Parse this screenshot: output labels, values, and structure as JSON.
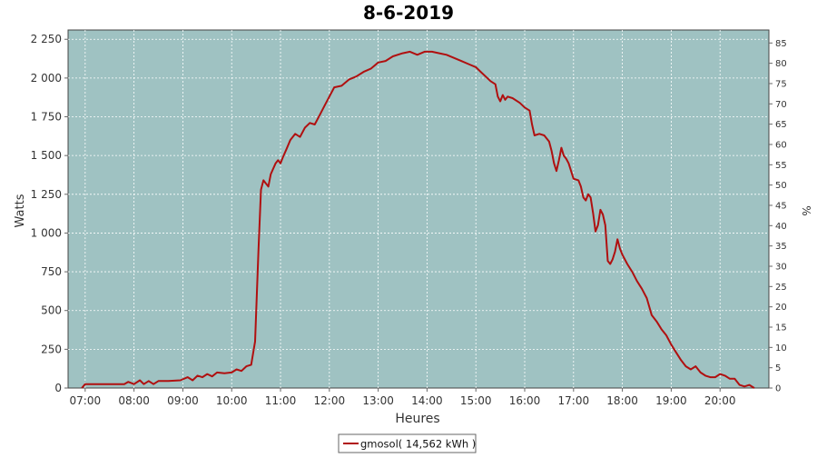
{
  "chart_data": {
    "type": "line",
    "title": "8-6-2019",
    "xlabel": "Heures",
    "ylabel_left": "Watts",
    "ylabel_right": "%",
    "x_ticks": [
      "07:00",
      "08:00",
      "09:00",
      "10:00",
      "11:00",
      "12:00",
      "13:00",
      "14:00",
      "15:00",
      "16:00",
      "17:00",
      "18:00",
      "19:00",
      "20:00"
    ],
    "x_range_hours": [
      6.65,
      21.0
    ],
    "y_ticks_left": [
      "0",
      "250",
      "500",
      "750",
      "1 000",
      "1 250",
      "1 500",
      "1 750",
      "2 000",
      "2 250"
    ],
    "y_ticks_right": [
      "0",
      "5",
      "10",
      "15",
      "20",
      "25",
      "30",
      "35",
      "40",
      "45",
      "50",
      "55",
      "60",
      "65",
      "70",
      "75",
      "80",
      "85"
    ],
    "ylim_left": [
      0,
      2310
    ],
    "ylim_right": [
      0,
      88.2
    ],
    "grid": true,
    "colors": {
      "plot_bg": "#9fc2c2",
      "line": "#b01010",
      "grid": "#ffffff"
    },
    "legend": {
      "placement": "bottom-center",
      "label": "gmosol( 14,562 kWh )"
    },
    "series": [
      {
        "name": "gmosol( 14,562 kWh )",
        "points": [
          [
            6.93,
            0
          ],
          [
            7.0,
            25
          ],
          [
            7.2,
            25
          ],
          [
            7.5,
            25
          ],
          [
            7.8,
            25
          ],
          [
            7.88,
            40
          ],
          [
            8.0,
            25
          ],
          [
            8.12,
            50
          ],
          [
            8.2,
            25
          ],
          [
            8.3,
            45
          ],
          [
            8.4,
            25
          ],
          [
            8.5,
            45
          ],
          [
            8.7,
            45
          ],
          [
            8.95,
            50
          ],
          [
            9.1,
            70
          ],
          [
            9.2,
            50
          ],
          [
            9.3,
            80
          ],
          [
            9.4,
            70
          ],
          [
            9.5,
            90
          ],
          [
            9.6,
            75
          ],
          [
            9.7,
            100
          ],
          [
            9.85,
            95
          ],
          [
            10.0,
            100
          ],
          [
            10.1,
            120
          ],
          [
            10.2,
            110
          ],
          [
            10.3,
            140
          ],
          [
            10.4,
            150
          ],
          [
            10.48,
            300
          ],
          [
            10.55,
            900
          ],
          [
            10.6,
            1280
          ],
          [
            10.65,
            1340
          ],
          [
            10.7,
            1320
          ],
          [
            10.75,
            1300
          ],
          [
            10.8,
            1380
          ],
          [
            10.9,
            1450
          ],
          [
            10.95,
            1470
          ],
          [
            11.0,
            1450
          ],
          [
            11.05,
            1490
          ],
          [
            11.12,
            1540
          ],
          [
            11.2,
            1600
          ],
          [
            11.3,
            1640
          ],
          [
            11.4,
            1620
          ],
          [
            11.5,
            1680
          ],
          [
            11.6,
            1710
          ],
          [
            11.7,
            1700
          ],
          [
            11.8,
            1760
          ],
          [
            11.9,
            1820
          ],
          [
            12.0,
            1880
          ],
          [
            12.1,
            1940
          ],
          [
            12.25,
            1950
          ],
          [
            12.4,
            1990
          ],
          [
            12.55,
            2010
          ],
          [
            12.7,
            2040
          ],
          [
            12.85,
            2060
          ],
          [
            13.0,
            2100
          ],
          [
            13.15,
            2110
          ],
          [
            13.3,
            2140
          ],
          [
            13.5,
            2160
          ],
          [
            13.65,
            2170
          ],
          [
            13.8,
            2150
          ],
          [
            13.95,
            2170
          ],
          [
            14.1,
            2170
          ],
          [
            14.25,
            2160
          ],
          [
            14.4,
            2150
          ],
          [
            14.55,
            2130
          ],
          [
            14.7,
            2110
          ],
          [
            14.85,
            2090
          ],
          [
            15.0,
            2070
          ],
          [
            15.1,
            2040
          ],
          [
            15.2,
            2010
          ],
          [
            15.3,
            1980
          ],
          [
            15.4,
            1960
          ],
          [
            15.45,
            1880
          ],
          [
            15.5,
            1850
          ],
          [
            15.55,
            1890
          ],
          [
            15.6,
            1860
          ],
          [
            15.65,
            1880
          ],
          [
            15.75,
            1870
          ],
          [
            15.9,
            1840
          ],
          [
            16.0,
            1810
          ],
          [
            16.1,
            1790
          ],
          [
            16.15,
            1700
          ],
          [
            16.2,
            1630
          ],
          [
            16.3,
            1640
          ],
          [
            16.4,
            1630
          ],
          [
            16.5,
            1590
          ],
          [
            16.55,
            1530
          ],
          [
            16.6,
            1450
          ],
          [
            16.65,
            1400
          ],
          [
            16.7,
            1470
          ],
          [
            16.75,
            1550
          ],
          [
            16.8,
            1500
          ],
          [
            16.85,
            1480
          ],
          [
            16.9,
            1450
          ],
          [
            17.0,
            1350
          ],
          [
            17.1,
            1340
          ],
          [
            17.15,
            1300
          ],
          [
            17.2,
            1230
          ],
          [
            17.25,
            1210
          ],
          [
            17.3,
            1250
          ],
          [
            17.35,
            1230
          ],
          [
            17.4,
            1130
          ],
          [
            17.45,
            1010
          ],
          [
            17.5,
            1050
          ],
          [
            17.55,
            1150
          ],
          [
            17.6,
            1120
          ],
          [
            17.65,
            1050
          ],
          [
            17.7,
            820
          ],
          [
            17.75,
            800
          ],
          [
            17.8,
            830
          ],
          [
            17.85,
            880
          ],
          [
            17.9,
            960
          ],
          [
            17.95,
            900
          ],
          [
            18.0,
            860
          ],
          [
            18.1,
            800
          ],
          [
            18.2,
            750
          ],
          [
            18.3,
            690
          ],
          [
            18.4,
            640
          ],
          [
            18.5,
            580
          ],
          [
            18.6,
            470
          ],
          [
            18.7,
            430
          ],
          [
            18.8,
            380
          ],
          [
            18.9,
            340
          ],
          [
            19.0,
            280
          ],
          [
            19.1,
            230
          ],
          [
            19.2,
            180
          ],
          [
            19.3,
            140
          ],
          [
            19.4,
            120
          ],
          [
            19.5,
            140
          ],
          [
            19.6,
            100
          ],
          [
            19.7,
            80
          ],
          [
            19.8,
            70
          ],
          [
            19.9,
            70
          ],
          [
            20.0,
            90
          ],
          [
            20.1,
            80
          ],
          [
            20.2,
            60
          ],
          [
            20.3,
            60
          ],
          [
            20.4,
            20
          ],
          [
            20.5,
            10
          ],
          [
            20.6,
            20
          ],
          [
            20.7,
            0
          ]
        ]
      }
    ]
  }
}
